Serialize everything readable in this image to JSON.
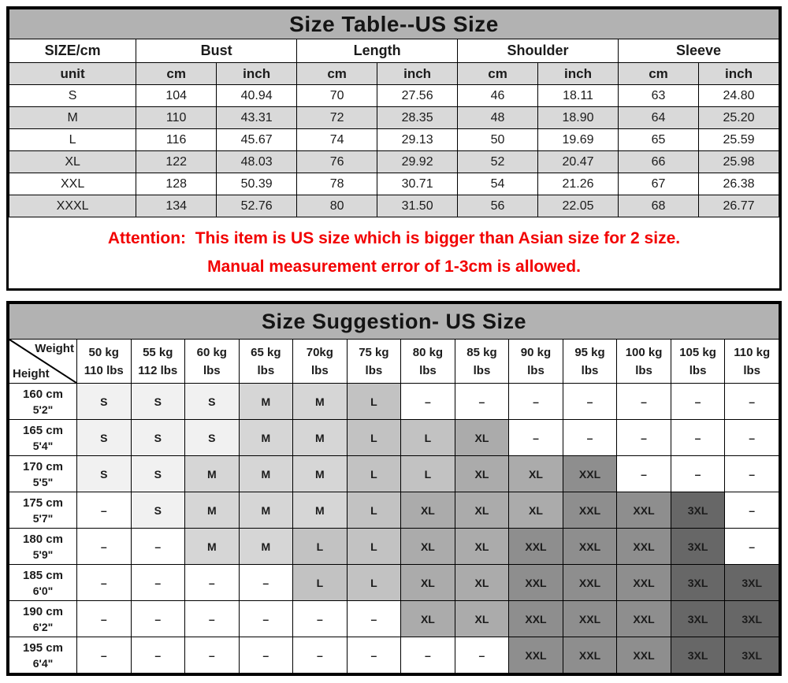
{
  "size_table": {
    "title": "Size Table--US Size",
    "corner_header": "SIZE/cm",
    "unit_label": "unit",
    "groups": [
      {
        "label": "Bust"
      },
      {
        "label": "Length"
      },
      {
        "label": "Shoulder"
      },
      {
        "label": "Sleeve"
      }
    ],
    "unit_columns": [
      "cm",
      "inch",
      "cm",
      "inch",
      "cm",
      "inch",
      "cm",
      "inch"
    ],
    "rows": [
      {
        "size": "S",
        "values": [
          "104",
          "40.94",
          "70",
          "27.56",
          "46",
          "18.11",
          "63",
          "24.80"
        ]
      },
      {
        "size": "M",
        "values": [
          "110",
          "43.31",
          "72",
          "28.35",
          "48",
          "18.90",
          "64",
          "25.20"
        ]
      },
      {
        "size": "L",
        "values": [
          "116",
          "45.67",
          "74",
          "29.13",
          "50",
          "19.69",
          "65",
          "25.59"
        ]
      },
      {
        "size": "XL",
        "values": [
          "122",
          "48.03",
          "76",
          "29.92",
          "52",
          "20.47",
          "66",
          "25.98"
        ]
      },
      {
        "size": "XXL",
        "values": [
          "128",
          "50.39",
          "78",
          "30.71",
          "54",
          "21.26",
          "67",
          "26.38"
        ]
      },
      {
        "size": "XXXL",
        "values": [
          "134",
          "52.76",
          "80",
          "31.50",
          "56",
          "22.05",
          "68",
          "26.77"
        ]
      }
    ]
  },
  "attention": {
    "line1": "Attention:  This item is US size which is bigger than Asian size for 2 size.",
    "line2": "Manual measurement error of 1-3cm is allowed."
  },
  "suggestion_table": {
    "title": "Size Suggestion- US Size",
    "corner": {
      "top_right": "Weight",
      "bottom_left": "Height"
    },
    "weight_headers": [
      {
        "kg": "50 kg",
        "lbs": "110 lbs"
      },
      {
        "kg": "55 kg",
        "lbs": "112 lbs"
      },
      {
        "kg": "60 kg",
        "lbs": "lbs"
      },
      {
        "kg": "65 kg",
        "lbs": "lbs"
      },
      {
        "kg": "70kg",
        "lbs": "lbs"
      },
      {
        "kg": "75 kg",
        "lbs": "lbs"
      },
      {
        "kg": "80 kg",
        "lbs": "lbs"
      },
      {
        "kg": "85 kg",
        "lbs": "lbs"
      },
      {
        "kg": "90 kg",
        "lbs": "lbs"
      },
      {
        "kg": "95 kg",
        "lbs": "lbs"
      },
      {
        "kg": "100 kg",
        "lbs": "lbs"
      },
      {
        "kg": "105 kg",
        "lbs": "lbs"
      },
      {
        "kg": "110 kg",
        "lbs": "lbs"
      }
    ],
    "rows": [
      {
        "cm": "160 cm",
        "ft": "5'2\"",
        "sizes": [
          "S",
          "S",
          "S",
          "M",
          "M",
          "L",
          "–",
          "–",
          "–",
          "–",
          "–",
          "–",
          "–"
        ]
      },
      {
        "cm": "165 cm",
        "ft": "5'4\"",
        "sizes": [
          "S",
          "S",
          "S",
          "M",
          "M",
          "L",
          "L",
          "XL",
          "–",
          "–",
          "–",
          "–",
          "–"
        ]
      },
      {
        "cm": "170 cm",
        "ft": "5'5\"",
        "sizes": [
          "S",
          "S",
          "M",
          "M",
          "M",
          "L",
          "L",
          "XL",
          "XL",
          "XXL",
          "–",
          "–",
          "–"
        ]
      },
      {
        "cm": "175 cm",
        "ft": "5'7\"",
        "sizes": [
          "–",
          "S",
          "M",
          "M",
          "M",
          "L",
          "XL",
          "XL",
          "XL",
          "XXL",
          "XXL",
          "3XL",
          "–"
        ]
      },
      {
        "cm": "180 cm",
        "ft": "5'9\"",
        "sizes": [
          "–",
          "–",
          "M",
          "M",
          "L",
          "L",
          "XL",
          "XL",
          "XXL",
          "XXL",
          "XXL",
          "3XL",
          "–"
        ]
      },
      {
        "cm": "185 cm",
        "ft": "6'0\"",
        "sizes": [
          "–",
          "–",
          "–",
          "–",
          "L",
          "L",
          "XL",
          "XL",
          "XXL",
          "XXL",
          "XXL",
          "3XL",
          "3XL"
        ]
      },
      {
        "cm": "190 cm",
        "ft": "6'2\"",
        "sizes": [
          "–",
          "–",
          "–",
          "–",
          "–",
          "–",
          "XL",
          "XL",
          "XXL",
          "XXL",
          "XXL",
          "3XL",
          "3XL"
        ]
      },
      {
        "cm": "195 cm",
        "ft": "6'4\"",
        "sizes": [
          "–",
          "–",
          "–",
          "–",
          "–",
          "–",
          "–",
          "–",
          "XXL",
          "XXL",
          "XXL",
          "3XL",
          "3XL"
        ]
      }
    ]
  },
  "colors": {
    "title_bar_bg": "#b2b2b2",
    "header_shade_bg": "#d9d9d9",
    "attention_text": "#f20000",
    "grid_border": "#000000",
    "size_cells": {
      "s": "#f1f1f1",
      "m": "#d6d6d6",
      "l": "#c2c2c2",
      "xl": "#ababab",
      "xxl": "#8e8e8e",
      "3xl": "#676767",
      "dash": "#ffffff"
    }
  }
}
